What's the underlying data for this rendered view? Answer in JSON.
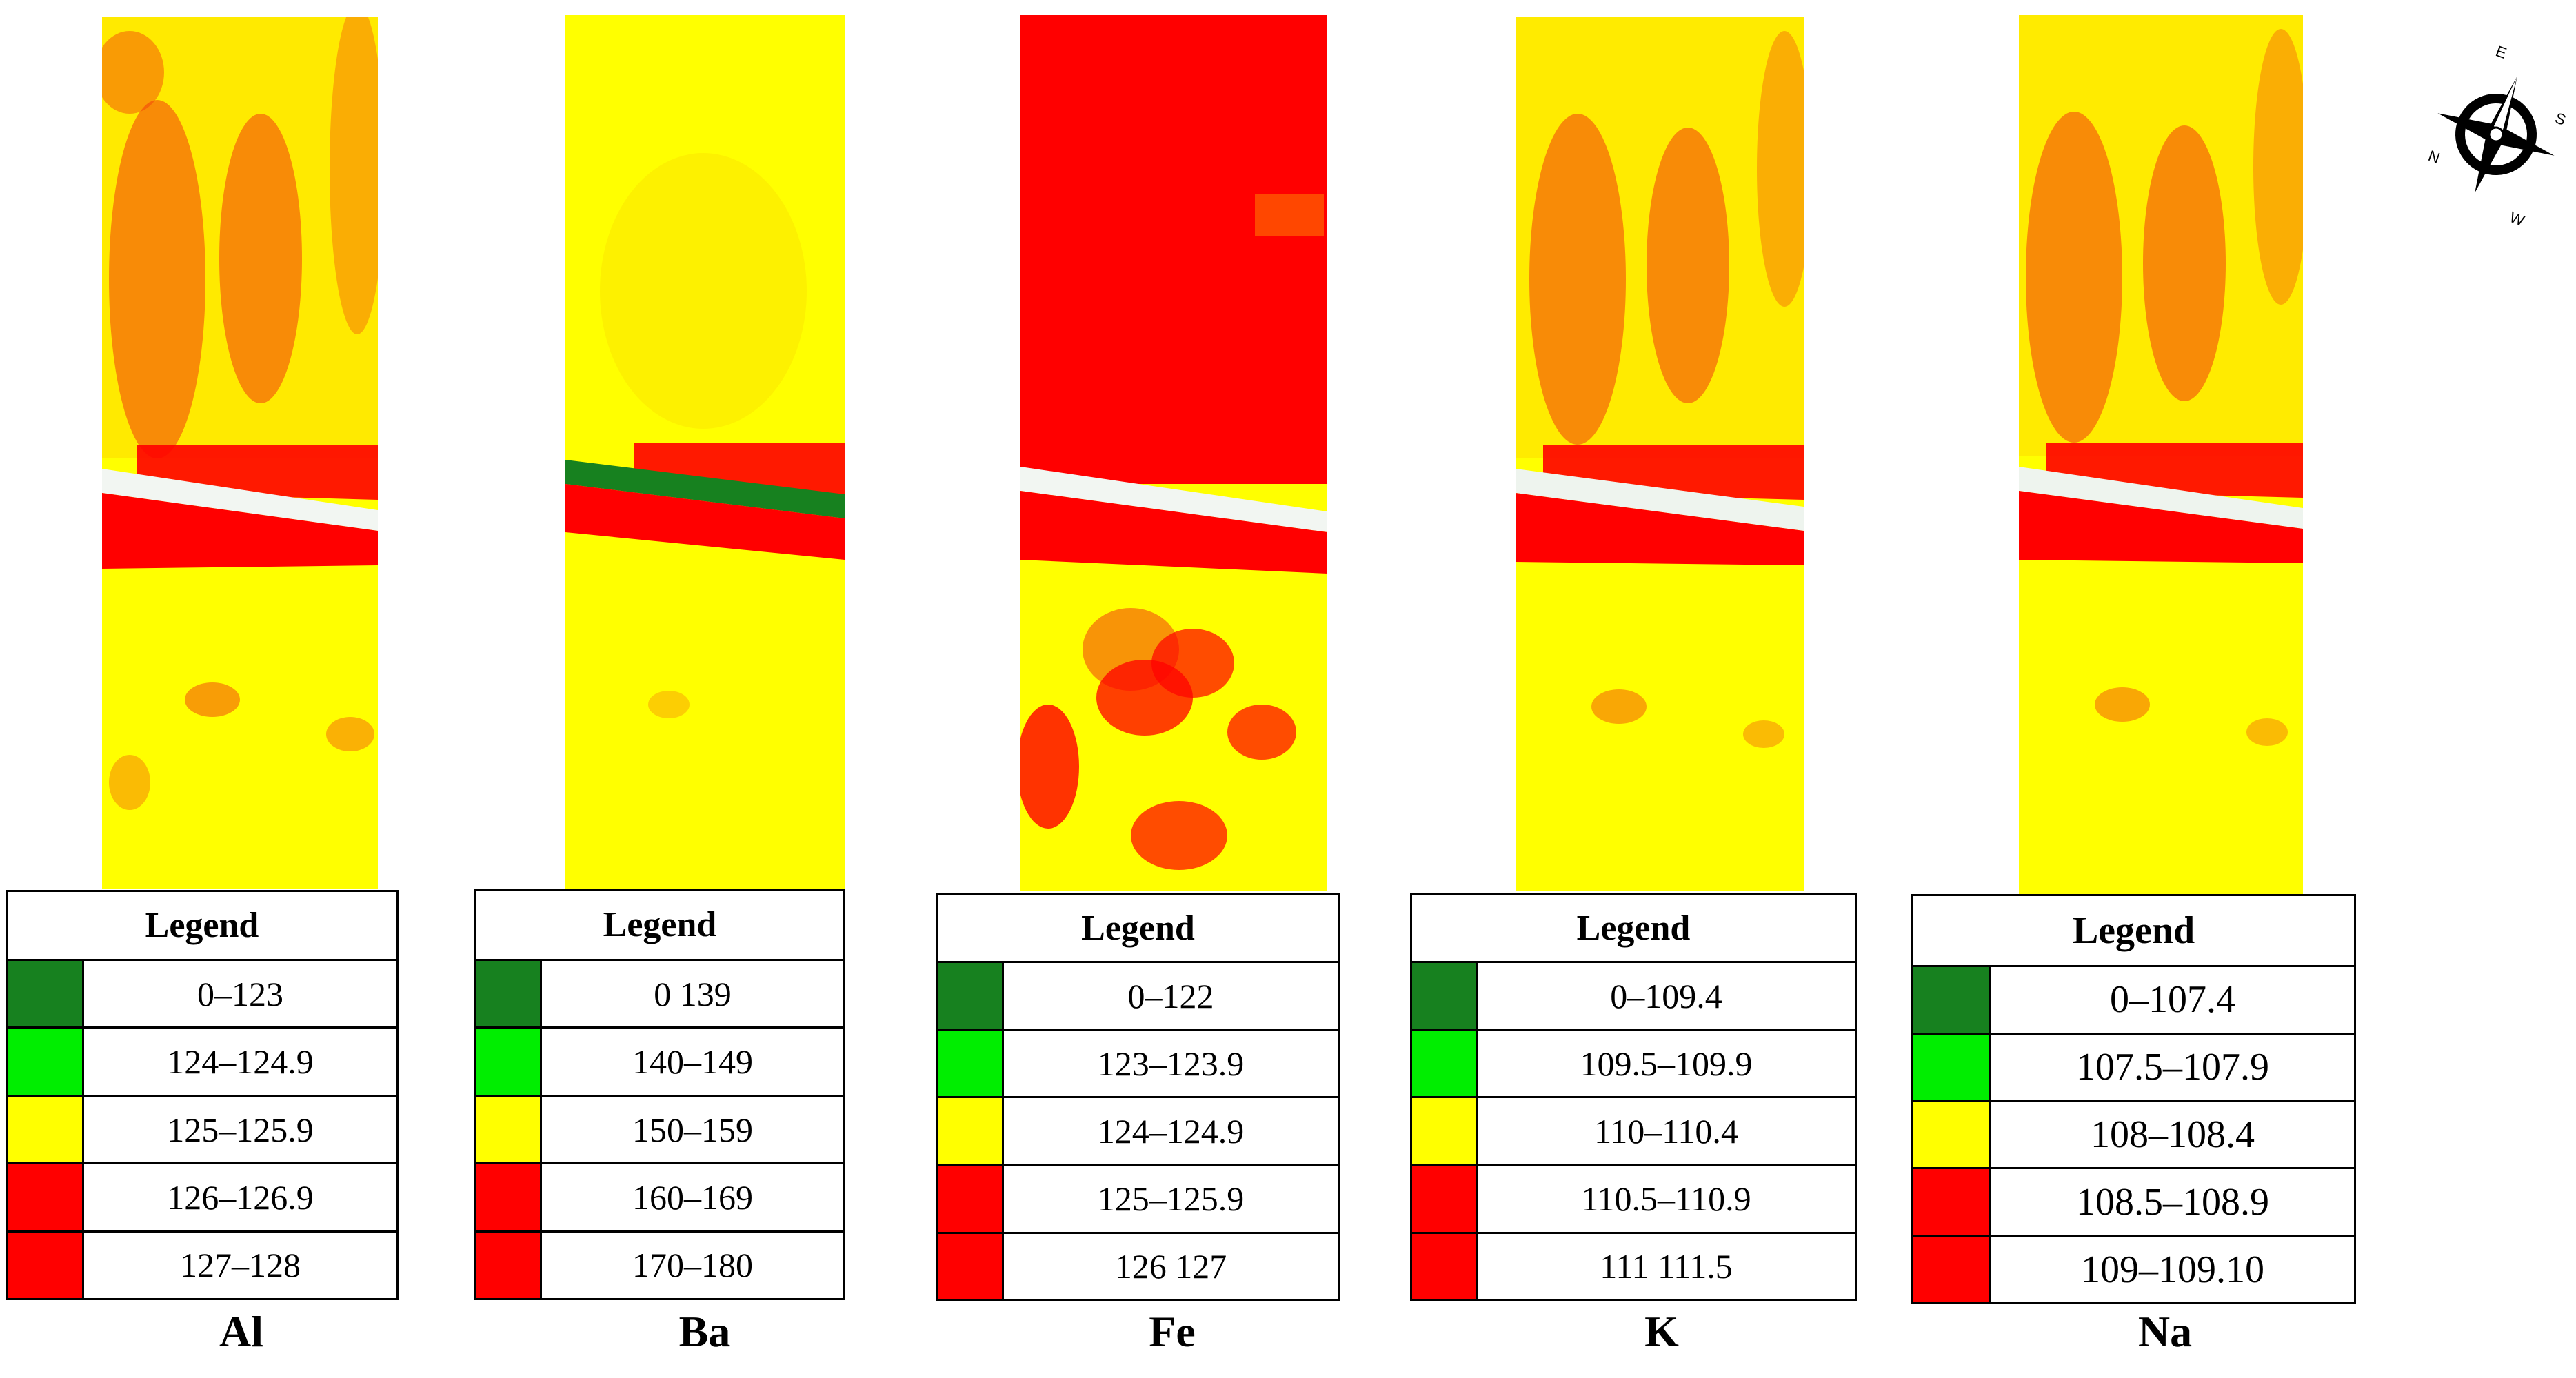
{
  "colors": {
    "dark_green": "#17811f",
    "light_green": "#00ee00",
    "yellow": "#ffff00",
    "red": "#ff0000"
  },
  "panels": [
    {
      "element": "Al",
      "legend_title": "Legend",
      "ranges": [
        "0–123",
        "124–124.9",
        "125–125.9",
        "126–126.9",
        "127–128"
      ]
    },
    {
      "element": "Ba",
      "legend_title": "Legend",
      "ranges": [
        "0 139",
        "140–149",
        "150–159",
        "160–169",
        "170–180"
      ]
    },
    {
      "element": "Fe",
      "legend_title": "Legend",
      "ranges": [
        "0–122",
        "123–123.9",
        "124–124.9",
        "125–125.9",
        "126 127"
      ]
    },
    {
      "element": "K",
      "legend_title": "Legend",
      "ranges": [
        "0–109.4",
        "109.5–109.9",
        "110–110.4",
        "110.5–110.9",
        "111 111.5"
      ]
    },
    {
      "element": "Na",
      "legend_title": "Legend",
      "ranges": [
        "0–107.4",
        "107.5–107.9",
        "108–108.4",
        "108.5–108.9",
        "109–109.10"
      ]
    }
  ],
  "compass": {
    "icon": "compass-rose-icon",
    "labels": {
      "n": "N",
      "e": "E",
      "s": "S",
      "w": "W"
    }
  }
}
